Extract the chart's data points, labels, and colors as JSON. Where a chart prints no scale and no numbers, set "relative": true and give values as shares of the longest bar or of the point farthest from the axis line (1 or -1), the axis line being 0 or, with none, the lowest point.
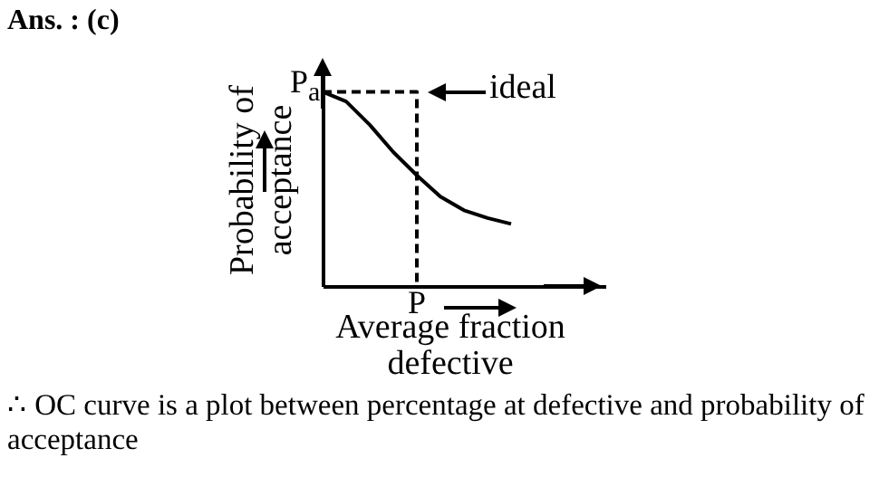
{
  "chart_data": {
    "type": "line",
    "title": "Ans. : (c)",
    "xlabel": "Average fraction\ndefective",
    "ylabel": "Probability of\nacceptance",
    "relative": true,
    "tick_labels": false,
    "categories": [
      null,
      null,
      null,
      null,
      null,
      null,
      null,
      null,
      null,
      null,
      null,
      null,
      null
    ],
    "series": [
      {
        "color": "#000000",
        "values": [
          1,
          0.95,
          0.83,
          0.69,
          0.57,
          0.46,
          0.39,
          0.35,
          0.32,
          null,
          null,
          null,
          null
        ]
      },
      {
        "type": "step",
        "name": "ideal",
        "color": "#000000",
        "line_style": "dashed",
        "values": [
          1,
          1,
          1,
          1,
          0,
          null,
          null,
          null,
          null,
          null,
          null,
          null,
          null
        ]
      }
    ],
    "annotations": [
      "P$_{a}$",
      "P",
      "∴ OC curve is a plot between percentage at defective and probability of acceptance"
    ]
  }
}
